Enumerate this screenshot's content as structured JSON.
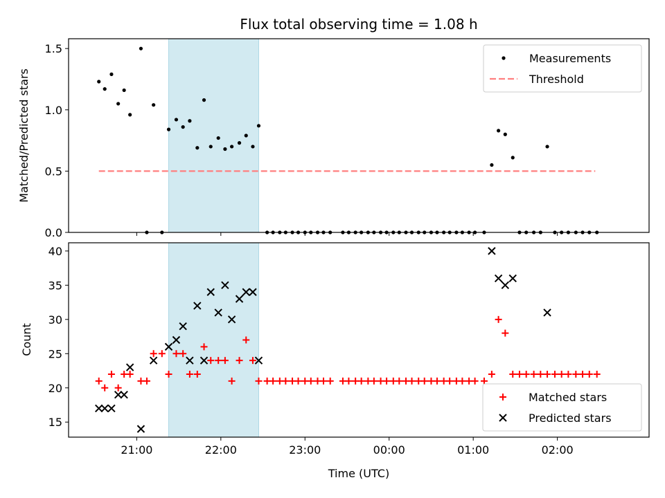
{
  "chart_data": [
    {
      "type": "scatter",
      "title": "Flux total observing time = 1.08 h",
      "xlabel": "",
      "ylabel": "Matched/Predicted stars",
      "x_tick_labels": [
        "21:00",
        "22:00",
        "23:00",
        "00:00",
        "01:00",
        "02:00"
      ],
      "x_ticks_hours": [
        21,
        22,
        23,
        24,
        25,
        26
      ],
      "xlim_hours": [
        20.19,
        27.09
      ],
      "ylim": [
        0,
        1.58
      ],
      "y_ticks": [
        0.0,
        0.5,
        1.0,
        1.5
      ],
      "y_tick_labels": [
        "0.0",
        "0.5",
        "1.0",
        "1.5"
      ],
      "highlight_span_hours": [
        21.38,
        22.45
      ],
      "highlight_color": "#add8e6",
      "legend_position": "top-right",
      "threshold": {
        "name": "Threshold",
        "value": 0.5,
        "x_range_hours": [
          20.55,
          26.45
        ],
        "color": "#ff7f7f",
        "style": "dashed"
      },
      "series": [
        {
          "name": "Measurements",
          "color": "#000000",
          "marker": "dot",
          "points": [
            [
              20.55,
              1.23
            ],
            [
              20.62,
              1.17
            ],
            [
              20.7,
              1.29
            ],
            [
              20.78,
              1.05
            ],
            [
              20.85,
              1.16
            ],
            [
              20.92,
              0.96
            ],
            [
              21.05,
              1.5
            ],
            [
              21.12,
              0.0
            ],
            [
              21.2,
              1.04
            ],
            [
              21.3,
              0.0
            ],
            [
              21.38,
              0.84
            ],
            [
              21.47,
              0.92
            ],
            [
              21.55,
              0.86
            ],
            [
              21.63,
              0.91
            ],
            [
              21.72,
              0.69
            ],
            [
              21.8,
              1.08
            ],
            [
              21.88,
              0.7
            ],
            [
              21.97,
              0.77
            ],
            [
              22.05,
              0.68
            ],
            [
              22.13,
              0.7
            ],
            [
              22.22,
              0.73
            ],
            [
              22.3,
              0.79
            ],
            [
              22.38,
              0.7
            ],
            [
              22.45,
              0.87
            ],
            [
              22.55,
              0.0
            ],
            [
              22.62,
              0.0
            ],
            [
              22.7,
              0.0
            ],
            [
              22.77,
              0.0
            ],
            [
              22.85,
              0.0
            ],
            [
              22.92,
              0.0
            ],
            [
              23.0,
              0.0
            ],
            [
              23.07,
              0.0
            ],
            [
              23.15,
              0.0
            ],
            [
              23.22,
              0.0
            ],
            [
              23.3,
              0.0
            ],
            [
              23.45,
              0.0
            ],
            [
              23.52,
              0.0
            ],
            [
              23.6,
              0.0
            ],
            [
              23.67,
              0.0
            ],
            [
              23.75,
              0.0
            ],
            [
              23.82,
              0.0
            ],
            [
              23.9,
              0.0
            ],
            [
              23.97,
              0.0
            ],
            [
              24.05,
              0.0
            ],
            [
              24.12,
              0.0
            ],
            [
              24.2,
              0.0
            ],
            [
              24.27,
              0.0
            ],
            [
              24.35,
              0.0
            ],
            [
              24.42,
              0.0
            ],
            [
              24.5,
              0.0
            ],
            [
              24.57,
              0.0
            ],
            [
              24.65,
              0.0
            ],
            [
              24.72,
              0.0
            ],
            [
              24.8,
              0.0
            ],
            [
              24.87,
              0.0
            ],
            [
              24.95,
              0.0
            ],
            [
              25.02,
              0.0
            ],
            [
              25.13,
              0.0
            ],
            [
              25.22,
              0.55
            ],
            [
              25.3,
              0.83
            ],
            [
              25.38,
              0.8
            ],
            [
              25.47,
              0.61
            ],
            [
              25.55,
              0.0
            ],
            [
              25.63,
              0.0
            ],
            [
              25.72,
              0.0
            ],
            [
              25.8,
              0.0
            ],
            [
              25.88,
              0.7
            ],
            [
              25.97,
              0.0
            ],
            [
              26.05,
              0.0
            ],
            [
              26.13,
              0.0
            ],
            [
              26.22,
              0.0
            ],
            [
              26.3,
              0.0
            ],
            [
              26.38,
              0.0
            ],
            [
              26.47,
              0.0
            ]
          ]
        }
      ]
    },
    {
      "type": "scatter",
      "title": "",
      "xlabel": "Time (UTC)",
      "ylabel": "Count",
      "x_tick_labels": [
        "21:00",
        "22:00",
        "23:00",
        "00:00",
        "01:00",
        "02:00"
      ],
      "x_ticks_hours": [
        21,
        22,
        23,
        24,
        25,
        26
      ],
      "xlim_hours": [
        20.19,
        27.09
      ],
      "ylim": [
        12.8,
        41.2
      ],
      "y_ticks": [
        15,
        20,
        25,
        30,
        35,
        40
      ],
      "y_tick_labels": [
        "15",
        "20",
        "25",
        "30",
        "35",
        "40"
      ],
      "highlight_span_hours": [
        21.38,
        22.45
      ],
      "highlight_color": "#add8e6",
      "legend_position": "bottom-right",
      "series": [
        {
          "name": "Matched stars",
          "color": "#ff0000",
          "marker": "plus",
          "points": [
            [
              20.55,
              21
            ],
            [
              20.62,
              20
            ],
            [
              20.7,
              22
            ],
            [
              20.78,
              20
            ],
            [
              20.85,
              22
            ],
            [
              20.92,
              22
            ],
            [
              21.05,
              21
            ],
            [
              21.12,
              21
            ],
            [
              21.2,
              25
            ],
            [
              21.3,
              25
            ],
            [
              21.38,
              22
            ],
            [
              21.47,
              25
            ],
            [
              21.55,
              25
            ],
            [
              21.63,
              22
            ],
            [
              21.72,
              22
            ],
            [
              21.8,
              26
            ],
            [
              21.88,
              24
            ],
            [
              21.97,
              24
            ],
            [
              22.05,
              24
            ],
            [
              22.13,
              21
            ],
            [
              22.22,
              24
            ],
            [
              22.3,
              27
            ],
            [
              22.38,
              24
            ],
            [
              22.45,
              21
            ],
            [
              22.55,
              21
            ],
            [
              22.62,
              21
            ],
            [
              22.7,
              21
            ],
            [
              22.77,
              21
            ],
            [
              22.85,
              21
            ],
            [
              22.92,
              21
            ],
            [
              23.0,
              21
            ],
            [
              23.07,
              21
            ],
            [
              23.15,
              21
            ],
            [
              23.22,
              21
            ],
            [
              23.3,
              21
            ],
            [
              23.45,
              21
            ],
            [
              23.52,
              21
            ],
            [
              23.6,
              21
            ],
            [
              23.67,
              21
            ],
            [
              23.75,
              21
            ],
            [
              23.82,
              21
            ],
            [
              23.9,
              21
            ],
            [
              23.97,
              21
            ],
            [
              24.05,
              21
            ],
            [
              24.12,
              21
            ],
            [
              24.2,
              21
            ],
            [
              24.27,
              21
            ],
            [
              24.35,
              21
            ],
            [
              24.42,
              21
            ],
            [
              24.5,
              21
            ],
            [
              24.57,
              21
            ],
            [
              24.65,
              21
            ],
            [
              24.72,
              21
            ],
            [
              24.8,
              21
            ],
            [
              24.87,
              21
            ],
            [
              24.95,
              21
            ],
            [
              25.02,
              21
            ],
            [
              25.13,
              21
            ],
            [
              25.22,
              22
            ],
            [
              25.3,
              30
            ],
            [
              25.38,
              28
            ],
            [
              25.47,
              22
            ],
            [
              25.55,
              22
            ],
            [
              25.63,
              22
            ],
            [
              25.72,
              22
            ],
            [
              25.8,
              22
            ],
            [
              25.88,
              22
            ],
            [
              25.97,
              22
            ],
            [
              26.05,
              22
            ],
            [
              26.13,
              22
            ],
            [
              26.22,
              22
            ],
            [
              26.3,
              22
            ],
            [
              26.38,
              22
            ],
            [
              26.47,
              22
            ]
          ]
        },
        {
          "name": "Predicted stars",
          "color": "#000000",
          "marker": "x",
          "points": [
            [
              20.55,
              17
            ],
            [
              20.62,
              17
            ],
            [
              20.7,
              17
            ],
            [
              20.78,
              19
            ],
            [
              20.85,
              19
            ],
            [
              20.92,
              23
            ],
            [
              21.05,
              14
            ],
            [
              21.2,
              24
            ],
            [
              21.38,
              26
            ],
            [
              21.47,
              27
            ],
            [
              21.55,
              29
            ],
            [
              21.63,
              24
            ],
            [
              21.72,
              32
            ],
            [
              21.8,
              24
            ],
            [
              21.88,
              34
            ],
            [
              21.97,
              31
            ],
            [
              22.05,
              35
            ],
            [
              22.13,
              30
            ],
            [
              22.22,
              33
            ],
            [
              22.3,
              34
            ],
            [
              22.38,
              34
            ],
            [
              22.45,
              24
            ],
            [
              25.22,
              40
            ],
            [
              25.3,
              36
            ],
            [
              25.38,
              35
            ],
            [
              25.47,
              36
            ],
            [
              25.88,
              31
            ]
          ]
        }
      ]
    }
  ]
}
